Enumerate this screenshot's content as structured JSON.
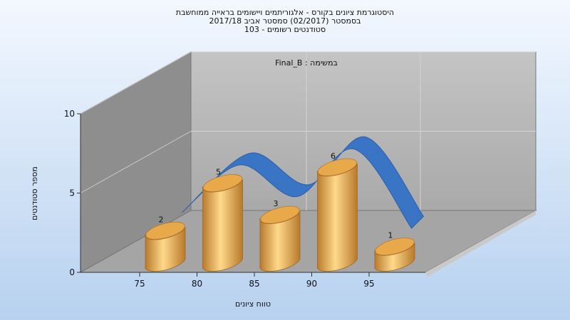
{
  "titles": [
    "היסטוגרמת ציונים בקורס - אלגוריתמים ויישומים בראייה ממוחשבת",
    "בסמסטר (02/2017) סמסטר אביב 2017/18",
    "סטודנטים רשומים - 103"
  ],
  "chart_data": {
    "type": "bar",
    "annotation": "במשימה : Final_B",
    "xlabel": "טווח ציונים",
    "ylabel": "מספר סטודנטים",
    "categories": [
      "75",
      "80",
      "85",
      "90",
      "95"
    ],
    "values": [
      2,
      5,
      3,
      6,
      1
    ],
    "value_labels": [
      "2",
      "5",
      "3",
      "6",
      "1"
    ],
    "line_values": [
      2,
      5,
      3,
      6,
      1
    ],
    "y_ticks": [
      "0",
      "5",
      "10"
    ],
    "ylim": [
      0,
      10
    ],
    "grid": true,
    "colors": {
      "bar": "#e0a64e",
      "bar_light": "#ffd98a",
      "bar_dark": "#b8792c",
      "line": "#3a74c4",
      "back_wall": "#b6b6b6",
      "side_wall": "#8c8c8c",
      "floor": "#a6a6a6"
    }
  }
}
